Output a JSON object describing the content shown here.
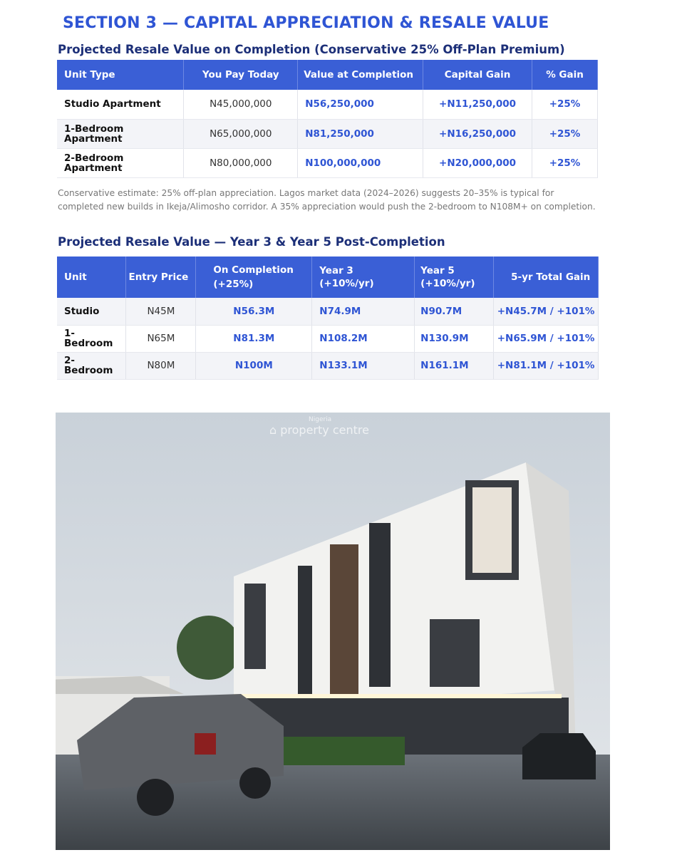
{
  "section_title": "SECTION 3 — CAPITAL APPRECIATION & RESALE VALUE",
  "table1": {
    "title": "Projected Resale Value on Completion (Conservative 25% Off-Plan Premium)",
    "headers": [
      "Unit Type",
      "You Pay Today",
      "Value at Completion",
      "Capital Gain",
      "% Gain"
    ],
    "rows": [
      [
        "Studio Apartment",
        "N45,000,000",
        "N56,250,000",
        "+N11,250,000",
        "+25%"
      ],
      [
        "1-Bedroom Apartment",
        "N65,000,000",
        "N81,250,000",
        "+N16,250,000",
        "+25%"
      ],
      [
        "2-Bedroom Apartment",
        "N80,000,000",
        "N100,000,000",
        "+N20,000,000",
        "+25%"
      ]
    ]
  },
  "note": "Conservative estimate: 25% off-plan appreciation. Lagos market data (2024–2026) suggests 20–35% is typical for completed new builds in Ikeja/Alimosho corridor. A 35% appreciation would push the 2-bedroom to N108M+ on completion.",
  "table2": {
    "title": "Projected Resale Value — Year 3 & Year 5 Post-Completion",
    "headers": [
      "Unit",
      "Entry Price",
      "On Completion (+25%)",
      "Year 3 (+10%/yr)",
      "Year 5 (+10%/yr)",
      "5-yr Total Gain"
    ],
    "rows": [
      [
        "Studio",
        "N45M",
        "N56.3M",
        "N74.9M",
        "N90.7M",
        "+N45.7M / +101%"
      ],
      [
        "1-Bedroom",
        "N65M",
        "N81.3M",
        "N108.2M",
        "N130.9M",
        "+N65.9M / +101%"
      ],
      [
        "2-Bedroom",
        "N80M",
        "N100M",
        "N133.1M",
        "N161.1M",
        "+N81.1M / +101%"
      ]
    ]
  },
  "watermark": {
    "top": "Nigeria",
    "main": "property centre"
  },
  "colors": {
    "accent": "#3a5fd6",
    "heading": "#2f55d4",
    "subheading": "#1c2f78"
  }
}
